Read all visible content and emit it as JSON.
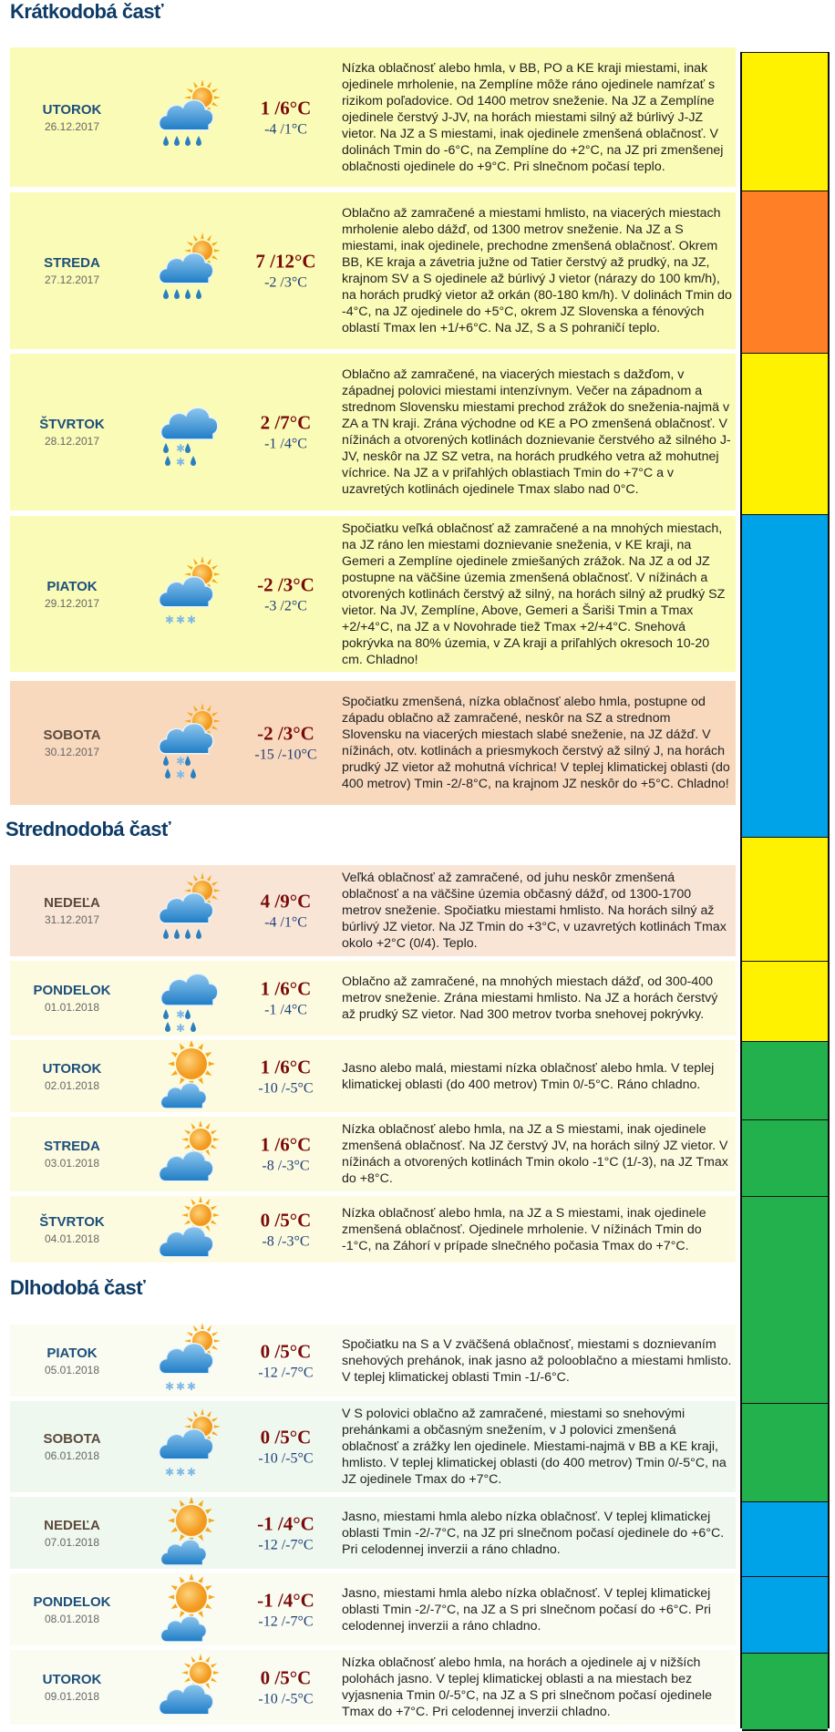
{
  "sections": [
    {
      "title": "Krátkodobá časť"
    },
    {
      "title": "Strednodobá časť"
    },
    {
      "title": "Dlhodobá časť"
    }
  ],
  "colors": {
    "weekday_name": "#1d4f7c",
    "weekend_name": "#5c4a3c",
    "tmax": "#7a0a0a",
    "tmin": "#1f3e7a"
  },
  "days": [
    {
      "name": "UTOROK",
      "date": "26.12.2017",
      "tmax": "1 /6°C",
      "tmin": "-4 /1°C",
      "icon": "sun-cloud-rain-icon",
      "weekend": false,
      "bg": "#fafbb6",
      "desc": "Nízka oblačnosť alebo hmla, v BB, PO a KE kraji miestami, inak ojedinele mrholenie, na Zemplíne môže ráno ojedinele namŕzať s rizikom poľadovice. Od 1400 metrov sneženie. Na JZ a Zemplíne ojedinele čerstvý J-JV, na horách miestami silný až búrlivý J-JZ vietor. Na JZ a S miestami, inak ojedinele zmenšená oblačnosť. V dolinách Tmin do -6°C, na Zemplíne do +2°C, na JZ pri zmenšenej oblačnosti ojedinele do +9°C. Pri slnečnom počasí teplo."
    },
    {
      "name": "STREDA",
      "date": "27.12.2017",
      "tmax": "7 /12°C",
      "tmin": "-2 /3°C",
      "icon": "sun-cloud-rain-icon",
      "weekend": false,
      "bg": "#fafbb6",
      "desc": "Oblačno až zamračené a miestami hmlisto, na viacerých miestach mrholenie alebo dážď, od 1300 metrov sneženie. Na JZ a S miestami, inak ojedinele, prechodne zmenšená oblačnosť. Okrem BB, KE kraja a závetria južne od Tatier čerstvý až prudký, na JZ, krajnom SV a S ojedinele až búrlivý J vietor (nárazy do 100 km/h), na horách prudký vietor až orkán (80-180 km/h). V dolinách Tmin do -4°C, na JZ ojedinele do +5°C, okrem JZ Slovenska a fénových oblastí Tmax len +1/+6°C. Na JZ, S a S pohraničí teplo."
    },
    {
      "name": "ŠTVRTOK",
      "date": "28.12.2017",
      "tmax": "2 /7°C",
      "tmin": "-1 /4°C",
      "icon": "cloud-rain-snow-icon",
      "weekend": false,
      "bg": "#fafbb6",
      "desc": "Oblačno až zamračené, na viacerých miestach s dažďom, v západnej polovici miestami intenzívnym. Večer na západnom a strednom Slovensku miestami prechod zrážok do sneženia-najmä v ZA a TN kraji. Zrána východne od KE a PO zmenšená oblačnosť. V nížinách a otvorených kotlinách doznievanie čerstvého až silného J-JV, neskôr na JZ SZ vetra, na horách prudkého vetra až mohutnej víchrice. Na JZ a v priľahlých oblastiach Tmin do +7°C a v uzavretých kotlinách ojedinele Tmax slabo nad 0°C."
    },
    {
      "name": "PIATOK",
      "date": "29.12.2017",
      "tmax": "-2 /3°C",
      "tmin": "-3 /2°C",
      "icon": "sun-cloud-snow-icon",
      "weekend": false,
      "bg": "#fafbb6",
      "desc": "Spočiatku veľká oblačnosť až zamračené a na mnohých miestach, na JZ ráno len miestami doznievanie sneženia, v KE kraji, na Gemeri a Zemplíne ojedinele zmiešaných zrážok. Na JZ a od JZ postupne na väčšine územia zmenšená oblačnosť. V nížinách a otvorených kotlinách čerstvý až silný, na horách silný až prudký SZ vietor. Na JV, Zemplíne, Above, Gemeri a Šariši Tmin a Tmax +2/+4°C, na JZ a v Novohrade tiež Tmax +2/+4°C. Snehová pokrývka na 80% územia, v ZA kraji a priľahlých okresoch 10-20 cm. Chladno!"
    },
    {
      "name": "SOBOTA",
      "date": "30.12.2017",
      "tmax": "-2 /3°C",
      "tmin": "-15 /-10°C",
      "icon": "sun-cloud-rain-snow-icon",
      "weekend": true,
      "bg": "#f8d9bd",
      "desc": "Spočiatku zmenšená, nízka oblačnosť alebo hmla, postupne od západu oblačno až zamračené, neskôr na SZ a strednom Slovensku na viacerých miestach slabé sneženie, na JZ dážď. V nížinách, otv. kotlinách a priesmykoch čerstvý až silný J, na horách prudký JZ vietor až mohutná víchrica! V teplej klimatickej oblasti (do 400 metrov) Tmin -2/-8°C, na krajnom JZ neskôr do +5°C. Chladno!"
    },
    {
      "name": "NEDEĽA",
      "date": "31.12.2017",
      "tmax": "4 /9°C",
      "tmin": "-4 /1°C",
      "icon": "sun-cloud-rain-icon",
      "weekend": true,
      "bg": "#f8e5d6",
      "desc": "Veľká oblačnosť až zamračené, od juhu neskôr zmenšená oblačnosť a na väčšine územia občasný dážď, od 1300-1700 metrov sneženie. Spočiatku miestami hmlisto. Na horách silný až búrlivý JZ vietor. Na JZ Tmin do +3°C, v uzavretých kotlinách Tmax okolo +2°C (0/4). Teplo."
    },
    {
      "name": "PONDELOK",
      "date": "01.01.2018",
      "tmax": "1 /6°C",
      "tmin": "-1 /4°C",
      "icon": "cloud-rain-snow-icon",
      "weekend": false,
      "bg": "#fdfbdf",
      "desc": "Oblačno až zamračené, na mnohých miestach dážď, od 300-400 metrov sneženie. Zrána miestami hmlisto. Na JZ a horách čerstvý až prudký SZ vietor. Nad 300 metrov tvorba snehovej pokrývky."
    },
    {
      "name": "UTOROK",
      "date": "02.01.2018",
      "tmax": "1 /6°C",
      "tmin": "-10 /-5°C",
      "icon": "sun-small-cloud-icon",
      "weekend": false,
      "bg": "#fdfbdf",
      "desc": "Jasno alebo malá, miestami nízka oblačnosť alebo hmla. V teplej klimatickej oblasti (do 400 metrov) Tmin 0/-5°C. Ráno chladno."
    },
    {
      "name": "STREDA",
      "date": "03.01.2018",
      "tmax": "1 /6°C",
      "tmin": "-8 /-3°C",
      "icon": "sun-cloud-icon",
      "weekend": false,
      "bg": "#fdfbdf",
      "desc": "Nízka oblačnosť alebo hmla, na JZ a S miestami, inak ojedinele zmenšená oblačnosť. Na JZ čerstvý JV, na horách silný JZ vietor. V nížinách a otvorených kotlinách Tmin okolo -1°C (1/-3), na JZ Tmax do +8°C."
    },
    {
      "name": "ŠTVRTOK",
      "date": "04.01.2018",
      "tmax": "0 /5°C",
      "tmin": "-8 /-3°C",
      "icon": "sun-cloud-icon",
      "weekend": false,
      "bg": "#fdfbdf",
      "desc": "Nízka oblačnosť alebo hmla, na JZ a S miestami, inak ojedinele zmenšená oblačnosť. Ojedinele mrholenie. V nížinách Tmin do -1°C, na Záhorí v prípade slnečného počasia Tmax do +7°C."
    },
    {
      "name": "PIATOK",
      "date": "05.01.2018",
      "tmax": "0 /5°C",
      "tmin": "-12 /-7°C",
      "icon": "sun-cloud-snow-icon",
      "weekend": false,
      "bg": "#fafcf1",
      "desc": "Spočiatku na S a V zväčšená oblačnosť, miestami s doznievaním snehových prehánok, inak jasno až polooblačno a miestami hmlisto. V teplej klimatickej oblasti Tmin -1/-6°C."
    },
    {
      "name": "SOBOTA",
      "date": "06.01.2018",
      "tmax": "0 /5°C",
      "tmin": "-10 /-5°C",
      "icon": "sun-cloud-snow-icon",
      "weekend": true,
      "bg": "#eef8ee",
      "desc": "V S polovici oblačno až zamračené, miestami so snehovými prehánkami a občasným snežením, v J polovici zmenšená oblačnosť a zrážky len ojedinele. Miestami-najmä v BB a KE kraji, hmlisto. V teplej klimatickej oblasti (do 400 metrov) Tmin 0/-5°C, na JZ ojedinele Tmax do +7°C."
    },
    {
      "name": "NEDEĽA",
      "date": "07.01.2018",
      "tmax": "-1 /4°C",
      "tmin": "-12 /-7°C",
      "icon": "sun-small-cloud-icon",
      "weekend": true,
      "bg": "#eef8ee",
      "desc": "Jasno, miestami hmla alebo nízka oblačnosť. V teplej klimatickej oblasti Tmin -2/-7°C, na JZ pri slnečnom počasí ojedinele do +6°C. Pri celodennej inverzii a ráno chladno."
    },
    {
      "name": "PONDELOK",
      "date": "08.01.2018",
      "tmax": "-1 /4°C",
      "tmin": "-12 /-7°C",
      "icon": "sun-small-cloud-icon",
      "weekend": false,
      "bg": "#fafcf1",
      "desc": "Jasno, miestami hmla alebo nízka oblačnosť. V teplej klimatickej oblasti Tmin -2/-7°C, na JZ a S pri slnečnom počasí do +6°C. Pri celodennej inverzii a ráno chladno."
    },
    {
      "name": "UTOROK",
      "date": "09.01.2018",
      "tmax": "0 /5°C",
      "tmin": "-10 /-5°C",
      "icon": "sun-cloud-icon",
      "weekend": false,
      "bg": "#fafcf1",
      "desc": "Nízka oblačnosť alebo hmla, na horách a ojedinele aj v nižších polohách jasno. V teplej klimatickej oblasti a na miestach bez vyjasnenia Tmin 0/-5°C, na JZ a S pri slnečnom počasí ojedinele Tmax do +7°C. Pri celodennej inverzii chladno."
    }
  ],
  "warning_bar": [
    {
      "color": "#fff200",
      "days": 1
    },
    {
      "color": "#ff7f27",
      "days": 1
    },
    {
      "color": "#fff200",
      "days": 1
    },
    {
      "color": "#00a2e8",
      "days": 2
    },
    {
      "color": "#fff200",
      "days": 1
    },
    {
      "color": "#fff200",
      "days": 1
    },
    {
      "color": "#22b14c",
      "days": 1
    },
    {
      "color": "#22b14c",
      "days": 1
    },
    {
      "color": "#22b14c",
      "days": 2
    },
    {
      "color": "#22b14c",
      "days": 1
    },
    {
      "color": "#00a2e8",
      "days": 1
    },
    {
      "color": "#00a2e8",
      "days": 1
    },
    {
      "color": "#22b14c",
      "days": 1
    }
  ]
}
